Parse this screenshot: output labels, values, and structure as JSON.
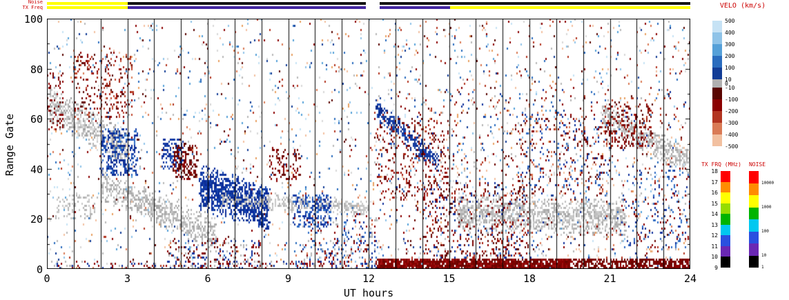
{
  "chart_data": {
    "type": "heatmap",
    "title": "",
    "xlabel": "UT hours",
    "ylabel": "Range Gate",
    "xlim": [
      0,
      24
    ],
    "ylim": [
      0,
      100
    ],
    "xticks": [
      "0",
      "3",
      "6",
      "9",
      "12",
      "15",
      "18",
      "21",
      "24"
    ],
    "yticks": [
      "0",
      "20",
      "40",
      "60",
      "80",
      "100"
    ],
    "x_minor_tick_step_hours": 1,
    "y_minor_tick_step_gates": 10,
    "gridlines": "vertical black line at every UT hour",
    "status_bars": {
      "noise_row": {
        "label": "Noise",
        "segments": [
          {
            "x0": 0,
            "x1": 3,
            "color": "#ffff00"
          },
          {
            "x0": 3,
            "x1": 11.9,
            "color": "#141414"
          },
          {
            "x0": 12.4,
            "x1": 24,
            "color": "#141414"
          }
        ]
      },
      "tx_freq_row": {
        "label": "TX Freq",
        "segments": [
          {
            "x0": 0,
            "x1": 3,
            "color": "#ffff00"
          },
          {
            "x0": 3,
            "x1": 11.9,
            "color": "#4326a0"
          },
          {
            "x0": 12.4,
            "x1": 15.05,
            "color": "#4326a0"
          },
          {
            "x0": 15.05,
            "x1": 24,
            "color": "#ffff00"
          }
        ]
      }
    },
    "colorbars": {
      "velocity": {
        "title": "VELO (km/s)",
        "label_side": "right",
        "blocks": [
          {
            "label": "500",
            "h": 17,
            "color": "#c6e2f5"
          },
          {
            "label": "400",
            "h": 17,
            "color": "#8fc3e8"
          },
          {
            "label": "300",
            "h": 17,
            "color": "#55a0d8"
          },
          {
            "label": "200",
            "h": 17,
            "color": "#2a6cbe"
          },
          {
            "label": "100",
            "h": 17,
            "color": "#123c96"
          },
          {
            "label": "10",
            "mid_label": "0",
            "h": 12,
            "color": "#b0b0b0"
          },
          {
            "label": "-10",
            "h": 17,
            "color": "#5a0500"
          },
          {
            "label": "-100",
            "h": 17,
            "color": "#8b0000"
          },
          {
            "label": "-200",
            "h": 17,
            "color": "#b23420"
          },
          {
            "label": "-300",
            "h": 17,
            "color": "#d97a55"
          },
          {
            "label": "-400",
            "h": 17,
            "color": "#f2c0a0"
          }
        ],
        "bottom_label": "-500"
      },
      "tx_freq": {
        "title": "TX FRQ (MHz)",
        "label_side": "left",
        "blocks": [
          {
            "label": "18",
            "h": 15.5,
            "color": "#ff0000"
          },
          {
            "label": "17",
            "h": 15.5,
            "color": "#ff8c00"
          },
          {
            "label": "16",
            "h": 15.5,
            "color": "#ffff00"
          },
          {
            "label": "15",
            "h": 15.5,
            "color": "#96dc00"
          },
          {
            "label": "14",
            "h": 15.5,
            "color": "#00b400"
          },
          {
            "label": "13",
            "h": 15.5,
            "color": "#00c8f0"
          },
          {
            "label": "12",
            "h": 15.5,
            "color": "#2a50e0"
          },
          {
            "label": "11",
            "h": 15.5,
            "color": "#6a28b4"
          },
          {
            "label": "10",
            "h": 15.5,
            "color": "#000000"
          }
        ],
        "bottom_label": "9"
      },
      "noise": {
        "title": "NOISE",
        "label_side": "right",
        "blocks": [
          {
            "h": 17.5,
            "color": "#ff0000"
          },
          {
            "label": "10000",
            "h": 17.5,
            "color": "#ff8c00"
          },
          {
            "h": 17.5,
            "color": "#ffff00"
          },
          {
            "label": "1000",
            "h": 17.5,
            "color": "#00b400"
          },
          {
            "h": 17.5,
            "color": "#00c8f0"
          },
          {
            "label": "100",
            "h": 17.5,
            "color": "#2a50e0"
          },
          {
            "h": 17.5,
            "color": "#6a28b4"
          },
          {
            "label": "10",
            "h": 17.5,
            "color": "#000000"
          }
        ],
        "bottom_label": "1"
      }
    },
    "scatter": {
      "seed": 1234567,
      "cell": {
        "w_hours": 0.05,
        "h_gates": 0.85
      },
      "background": {
        "count": 2400,
        "colors": [
          "#8b0000",
          "#5a0500",
          "#b23420",
          "#d97a55",
          "#f2c0a0",
          "#123c96",
          "#2a6cbe",
          "#55a0d8",
          "#8fc3e8",
          "#c6e2f5",
          "#b8b8b8",
          "#d8d8d8",
          "#e8a060"
        ]
      },
      "clusters": [
        {
          "name": "early-groundscatter-band",
          "mode": "band",
          "x0": 0.1,
          "x1": 3.0,
          "gs": 66,
          "ge": 47,
          "hw": 7,
          "count": 600,
          "colors": [
            "#b4b4b4",
            "#c8c8c8",
            "#a0a0a0",
            "#dcdcdc"
          ]
        },
        {
          "name": "early-red-patch",
          "mode": "uniform",
          "x0": 1.0,
          "x1": 3.2,
          "g0": 60,
          "g1": 86,
          "count": 240,
          "colors": [
            "#6b0500",
            "#8b0000",
            "#a51e0f",
            "#5a0500",
            "#c04a30"
          ]
        },
        {
          "name": "edge-red-specks",
          "mode": "uniform",
          "x0": 0.0,
          "x1": 0.6,
          "g0": 55,
          "g1": 78,
          "count": 60,
          "colors": [
            "#8b0000",
            "#6b0500"
          ]
        },
        {
          "name": "blue-patch-2h",
          "mode": "uniform",
          "x0": 2.0,
          "x1": 3.4,
          "g0": 37,
          "g1": 56,
          "count": 300,
          "colors": [
            "#10309c",
            "#1a44ac",
            "#0a2a8c",
            "#2f6cc4"
          ]
        },
        {
          "name": "gray-band-morning",
          "mode": "band",
          "x0": 2.0,
          "x1": 6.3,
          "gs": 34,
          "ge": 14,
          "hw": 6,
          "count": 650,
          "colors": [
            "#b4b4b4",
            "#c8c8c8",
            "#a8a8a8"
          ]
        },
        {
          "name": "gray-patch-0h",
          "mode": "uniform",
          "x0": 0.3,
          "x1": 1.8,
          "g0": 20,
          "g1": 30,
          "count": 90,
          "colors": [
            "#b4b4b4",
            "#c8c8c8"
          ]
        },
        {
          "name": "blue-sliver-4h",
          "mode": "uniform",
          "x0": 4.3,
          "x1": 5.1,
          "g0": 40,
          "g1": 52,
          "count": 120,
          "colors": [
            "#10309c",
            "#1a44ac"
          ]
        },
        {
          "name": "red-patch-5h",
          "mode": "uniform",
          "x0": 4.7,
          "x1": 5.6,
          "g0": 36,
          "g1": 50,
          "count": 160,
          "colors": [
            "#6b0500",
            "#8b0000",
            "#5a0500"
          ]
        },
        {
          "name": "big-blue-blob",
          "mode": "band",
          "x0": 5.7,
          "x1": 8.3,
          "gs": 33,
          "ge": 24,
          "hw": 8,
          "count": 1100,
          "colors": [
            "#0a2a9c",
            "#11379f",
            "#1644b0",
            "#0d2f92"
          ]
        },
        {
          "name": "bottom-specks-5-8h",
          "mode": "uniform",
          "x0": 4.5,
          "x1": 8.0,
          "g0": 0,
          "g1": 12,
          "count": 200,
          "colors": [
            "#8b0000",
            "#10309c",
            "#b4b4b4",
            "#6b0500"
          ]
        },
        {
          "name": "gray-band-forenoon",
          "mode": "band",
          "x0": 6.5,
          "x1": 12.0,
          "gs": 28,
          "ge": 24,
          "hw": 3,
          "count": 420,
          "colors": [
            "#b4b4b4",
            "#c8c8c8"
          ]
        },
        {
          "name": "red-specks-9h",
          "mode": "uniform",
          "x0": 8.3,
          "x1": 9.5,
          "g0": 36,
          "g1": 48,
          "count": 90,
          "colors": [
            "#8b0000",
            "#6b0500"
          ]
        },
        {
          "name": "blue-patch-10h",
          "mode": "uniform",
          "x0": 9.2,
          "x1": 10.6,
          "g0": 17,
          "g1": 30,
          "count": 200,
          "colors": [
            "#10309c",
            "#2f6cc4",
            "#1a44ac"
          ]
        },
        {
          "name": "late-morning-low-specks",
          "mode": "uniform",
          "x0": 9.5,
          "x1": 12.3,
          "g0": 0,
          "g1": 22,
          "count": 240,
          "colors": [
            "#10309c",
            "#8b0000",
            "#b4b4b4",
            "#2f6cc4"
          ]
        },
        {
          "name": "blue-streak-13h",
          "mode": "band",
          "x0": 12.3,
          "x1": 14.6,
          "gs": 64,
          "ge": 42,
          "hw": 4,
          "count": 320,
          "colors": [
            "#0a2a8c",
            "#123a9c",
            "#1a44ac"
          ]
        },
        {
          "name": "red-specks-13h",
          "mode": "uniform",
          "x0": 12.3,
          "x1": 15.0,
          "g0": 28,
          "g1": 60,
          "count": 240,
          "colors": [
            "#6b0500",
            "#8b0000",
            "#a51e0f"
          ]
        },
        {
          "name": "afternoon-mix",
          "mode": "uniform",
          "x0": 14.0,
          "x1": 18.0,
          "g0": 3,
          "g1": 35,
          "count": 480,
          "colors": [
            "#6b0500",
            "#8b0000",
            "#a51e0f",
            "#5a0500",
            "#10309c"
          ]
        },
        {
          "name": "bottom-red-band-dense",
          "mode": "uniform",
          "x0": 12.35,
          "x1": 19.5,
          "g0": 0,
          "g1": 4,
          "count": 1500,
          "colors": [
            "#8b0000",
            "#7a0500",
            "#a01010",
            "#6b0500"
          ]
        },
        {
          "name": "bottom-red-band-sparse",
          "mode": "uniform",
          "x0": 19.5,
          "x1": 24,
          "g0": 0,
          "g1": 4,
          "count": 480,
          "colors": [
            "#8b0000",
            "#7a0500",
            "#6b0500"
          ]
        },
        {
          "name": "bottom-specks-morning",
          "mode": "uniform",
          "x0": 0.2,
          "x1": 12.3,
          "g0": 0,
          "g1": 3,
          "count": 190,
          "colors": [
            "#8b0000",
            "#10309c",
            "#b4b4b4"
          ]
        },
        {
          "name": "evening-groundscatter-blob",
          "mode": "band",
          "x0": 15.3,
          "x1": 21.6,
          "gs": 23,
          "ge": 20,
          "hw": 7,
          "count": 1250,
          "colors": [
            "#b4b4b4",
            "#c0c0c0",
            "#a8a8a8",
            "#cccccc"
          ]
        },
        {
          "name": "evening-specks",
          "mode": "uniform",
          "x0": 17.5,
          "x1": 21.0,
          "g0": 30,
          "g1": 62,
          "count": 260,
          "colors": [
            "#8b0000",
            "#6b0500",
            "#10309c",
            "#2f6cc4",
            "#d97a55"
          ]
        },
        {
          "name": "late-groundscatter-band",
          "mode": "band",
          "x0": 20.7,
          "x1": 24.0,
          "gs": 62,
          "ge": 42,
          "hw": 5,
          "count": 520,
          "colors": [
            "#b4b4b4",
            "#c8c8c8",
            "#a8a8a8"
          ]
        },
        {
          "name": "red-patch-21h",
          "mode": "uniform",
          "x0": 20.8,
          "x1": 22.6,
          "g0": 48,
          "g1": 66,
          "count": 190,
          "colors": [
            "#6b0500",
            "#8b0000",
            "#a51e0f"
          ]
        },
        {
          "name": "right-half-speckle",
          "mode": "uniform",
          "x0": 12.2,
          "x1": 24,
          "g0": 4,
          "g1": 72,
          "count": 650,
          "colors": [
            "#8b0000",
            "#6b0500",
            "#10309c",
            "#2f6cc4",
            "#b23420",
            "#f2c0a0",
            "#b4b4b4"
          ]
        },
        {
          "name": "late-low-specks",
          "mode": "uniform",
          "x0": 21.5,
          "x1": 24,
          "g0": 8,
          "g1": 40,
          "count": 150,
          "colors": [
            "#10309c",
            "#2f6cc4",
            "#8b0000"
          ]
        }
      ]
    }
  }
}
